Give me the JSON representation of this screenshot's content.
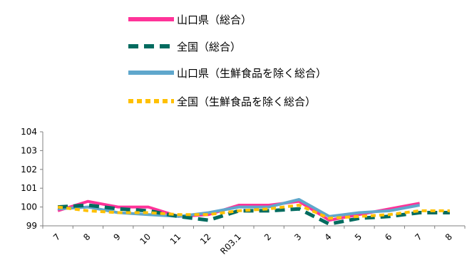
{
  "chart_data": {
    "type": "line",
    "categories": [
      "7",
      "8",
      "9",
      "10",
      "11",
      "12",
      "R03.1",
      "2",
      "3",
      "4",
      "5",
      "6",
      "7",
      "8"
    ],
    "ylim": [
      99,
      104
    ],
    "yticks": [
      99,
      100,
      101,
      102,
      103,
      104
    ],
    "grid": false,
    "legend_position": "top",
    "series": [
      {
        "name": "山口県（総合）",
        "color": "#ff3399",
        "dash": "solid",
        "values": [
          99.8,
          100.3,
          100.0,
          100.0,
          99.5,
          99.6,
          100.1,
          100.1,
          100.3,
          99.3,
          99.6,
          99.9,
          100.2,
          null
        ]
      },
      {
        "name": "全国（総合）",
        "color": "#006b5f",
        "dash": "longdash",
        "values": [
          100.0,
          100.1,
          99.9,
          99.8,
          99.5,
          99.3,
          99.8,
          99.8,
          99.9,
          99.1,
          99.4,
          99.5,
          99.7,
          99.7
        ]
      },
      {
        "name": "山口県（生鮮食品を除く総合）",
        "color": "#5fa7cc",
        "dash": "solid",
        "values": [
          99.9,
          100.0,
          99.7,
          99.6,
          99.5,
          99.7,
          100.0,
          100.0,
          100.4,
          99.5,
          99.7,
          99.8,
          100.1,
          null
        ]
      },
      {
        "name": "全国（生鮮食品を除く総合）",
        "color": "#ffc000",
        "dash": "shortdash",
        "values": [
          100.0,
          99.8,
          99.7,
          99.7,
          99.6,
          99.6,
          99.8,
          99.9,
          100.1,
          99.4,
          99.5,
          99.6,
          99.8,
          99.8
        ]
      }
    ]
  }
}
